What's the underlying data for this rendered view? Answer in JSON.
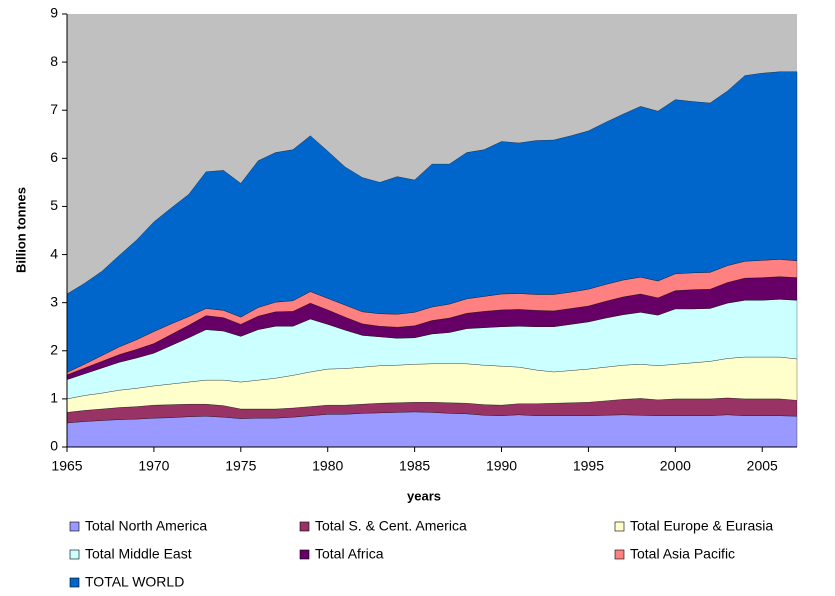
{
  "chart_data": {
    "type": "stacked_area",
    "x_label": "years",
    "y_label": "Billion tonnes",
    "x": [
      1965,
      1966,
      1967,
      1968,
      1969,
      1970,
      1971,
      1972,
      1973,
      1974,
      1975,
      1976,
      1977,
      1978,
      1979,
      1980,
      1981,
      1982,
      1983,
      1984,
      1985,
      1986,
      1987,
      1988,
      1989,
      1990,
      1991,
      1992,
      1993,
      1994,
      1995,
      1996,
      1997,
      1998,
      1999,
      2000,
      2001,
      2002,
      2003,
      2004,
      2005,
      2006,
      2007
    ],
    "xlim": [
      1965,
      2007
    ],
    "xticks": [
      1965,
      1970,
      1975,
      1980,
      1985,
      1990,
      1995,
      2000,
      2005
    ],
    "ylim": [
      0,
      9
    ],
    "yticks": [
      0,
      1,
      2,
      3,
      4,
      5,
      6,
      7,
      8,
      9
    ],
    "grid": false,
    "legend": "bottom",
    "plot_background": "#c0c0c0",
    "series": [
      {
        "name": "Total North America",
        "color": "#9999ff",
        "values": [
          0.5,
          0.53,
          0.55,
          0.57,
          0.58,
          0.6,
          0.61,
          0.63,
          0.64,
          0.62,
          0.59,
          0.6,
          0.6,
          0.62,
          0.65,
          0.68,
          0.68,
          0.7,
          0.71,
          0.72,
          0.73,
          0.72,
          0.7,
          0.69,
          0.66,
          0.65,
          0.67,
          0.65,
          0.65,
          0.65,
          0.65,
          0.66,
          0.67,
          0.66,
          0.65,
          0.65,
          0.65,
          0.65,
          0.67,
          0.65,
          0.65,
          0.65,
          0.64
        ]
      },
      {
        "name": "Total S. & Cent. America",
        "color": "#993366",
        "values": [
          0.22,
          0.23,
          0.24,
          0.25,
          0.26,
          0.27,
          0.27,
          0.26,
          0.25,
          0.24,
          0.2,
          0.19,
          0.19,
          0.19,
          0.19,
          0.19,
          0.19,
          0.19,
          0.2,
          0.2,
          0.2,
          0.21,
          0.22,
          0.22,
          0.22,
          0.22,
          0.23,
          0.25,
          0.26,
          0.27,
          0.28,
          0.3,
          0.32,
          0.35,
          0.33,
          0.35,
          0.35,
          0.35,
          0.35,
          0.35,
          0.35,
          0.35,
          0.33
        ]
      },
      {
        "name": "Total Europe & Eurasia",
        "color": "#ffffcc",
        "values": [
          0.28,
          0.31,
          0.33,
          0.36,
          0.38,
          0.4,
          0.43,
          0.46,
          0.5,
          0.53,
          0.56,
          0.6,
          0.64,
          0.68,
          0.72,
          0.75,
          0.76,
          0.77,
          0.78,
          0.78,
          0.79,
          0.8,
          0.81,
          0.82,
          0.82,
          0.81,
          0.76,
          0.7,
          0.65,
          0.67,
          0.69,
          0.7,
          0.71,
          0.71,
          0.71,
          0.72,
          0.75,
          0.78,
          0.82,
          0.87,
          0.87,
          0.87,
          0.86
        ]
      },
      {
        "name": "Total Middle East",
        "color": "#ccffff",
        "values": [
          0.4,
          0.45,
          0.52,
          0.58,
          0.63,
          0.68,
          0.8,
          0.92,
          1.05,
          1.02,
          0.95,
          1.05,
          1.08,
          1.02,
          1.1,
          0.93,
          0.8,
          0.66,
          0.6,
          0.56,
          0.55,
          0.62,
          0.65,
          0.73,
          0.78,
          0.82,
          0.85,
          0.9,
          0.94,
          0.96,
          0.98,
          1.02,
          1.05,
          1.08,
          1.05,
          1.15,
          1.12,
          1.1,
          1.15,
          1.18,
          1.18,
          1.2,
          1.22
        ]
      },
      {
        "name": "Total Africa",
        "color": "#660066",
        "values": [
          0.1,
          0.12,
          0.14,
          0.16,
          0.18,
          0.2,
          0.23,
          0.26,
          0.29,
          0.28,
          0.25,
          0.28,
          0.3,
          0.31,
          0.33,
          0.3,
          0.27,
          0.24,
          0.22,
          0.23,
          0.25,
          0.28,
          0.3,
          0.32,
          0.34,
          0.35,
          0.35,
          0.34,
          0.33,
          0.33,
          0.33,
          0.35,
          0.37,
          0.38,
          0.36,
          0.38,
          0.4,
          0.4,
          0.43,
          0.46,
          0.47,
          0.47,
          0.47
        ]
      },
      {
        "name": "Total Asia Pacific",
        "color": "#ff8080",
        "values": [
          0.05,
          0.08,
          0.12,
          0.16,
          0.2,
          0.25,
          0.22,
          0.18,
          0.15,
          0.15,
          0.15,
          0.18,
          0.2,
          0.22,
          0.24,
          0.24,
          0.25,
          0.25,
          0.26,
          0.27,
          0.28,
          0.28,
          0.29,
          0.3,
          0.31,
          0.33,
          0.33,
          0.33,
          0.34,
          0.34,
          0.35,
          0.35,
          0.35,
          0.35,
          0.35,
          0.35,
          0.35,
          0.35,
          0.35,
          0.35,
          0.36,
          0.36,
          0.35
        ]
      },
      {
        "name": "TOTAL WORLD",
        "color": "#0066cc",
        "values": [
          1.63,
          1.68,
          1.75,
          1.9,
          2.07,
          2.28,
          2.41,
          2.54,
          2.84,
          2.91,
          2.78,
          3.05,
          3.11,
          3.14,
          3.24,
          3.06,
          2.87,
          2.79,
          2.73,
          2.86,
          2.75,
          2.97,
          2.91,
          3.04,
          3.05,
          3.17,
          3.13,
          3.2,
          3.21,
          3.25,
          3.29,
          3.37,
          3.45,
          3.55,
          3.53,
          3.62,
          3.56,
          3.52,
          3.63,
          3.86,
          3.89,
          3.9,
          3.93
        ]
      }
    ]
  }
}
